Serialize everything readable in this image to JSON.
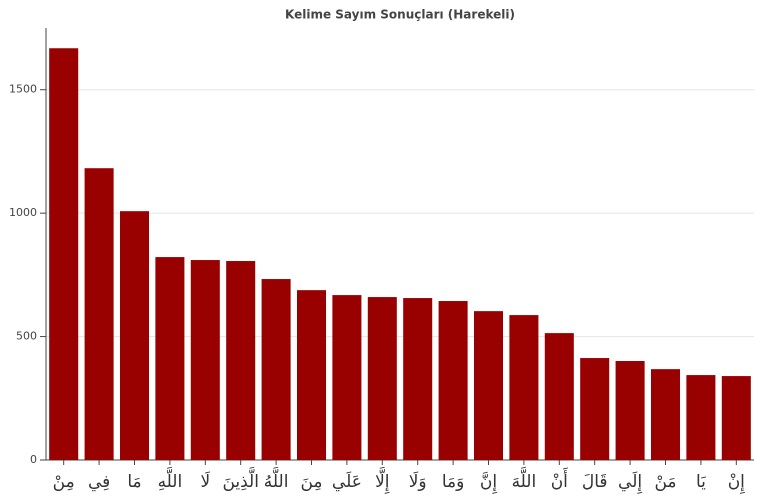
{
  "chart_data": {
    "type": "bar",
    "title": "Kelime Sayım Sonuçları (Harekeli)",
    "categories": [
      "مِنْ",
      "فِي",
      "مَا",
      "اللَّهِ",
      "لَا",
      "الَّذِينَ",
      "اللَّهُ",
      "مِنَ",
      "عَلَي",
      "إِلَّا",
      "وَلَا",
      "وَمَا",
      "إِنَّ",
      "اللَّهَ",
      "أَنْ",
      "قَالَ",
      "إِلَي",
      "مَنْ",
      "يَا",
      "إِنْ"
    ],
    "values": [
      1668,
      1182,
      1008,
      822,
      810,
      806,
      733,
      688,
      668,
      660,
      656,
      644,
      603,
      587,
      514,
      413,
      401,
      368,
      344,
      340
    ],
    "color": "#990000",
    "ylim": [
      0,
      1750
    ],
    "yticks": [
      0,
      500,
      1000,
      1500
    ],
    "grid": true
  }
}
